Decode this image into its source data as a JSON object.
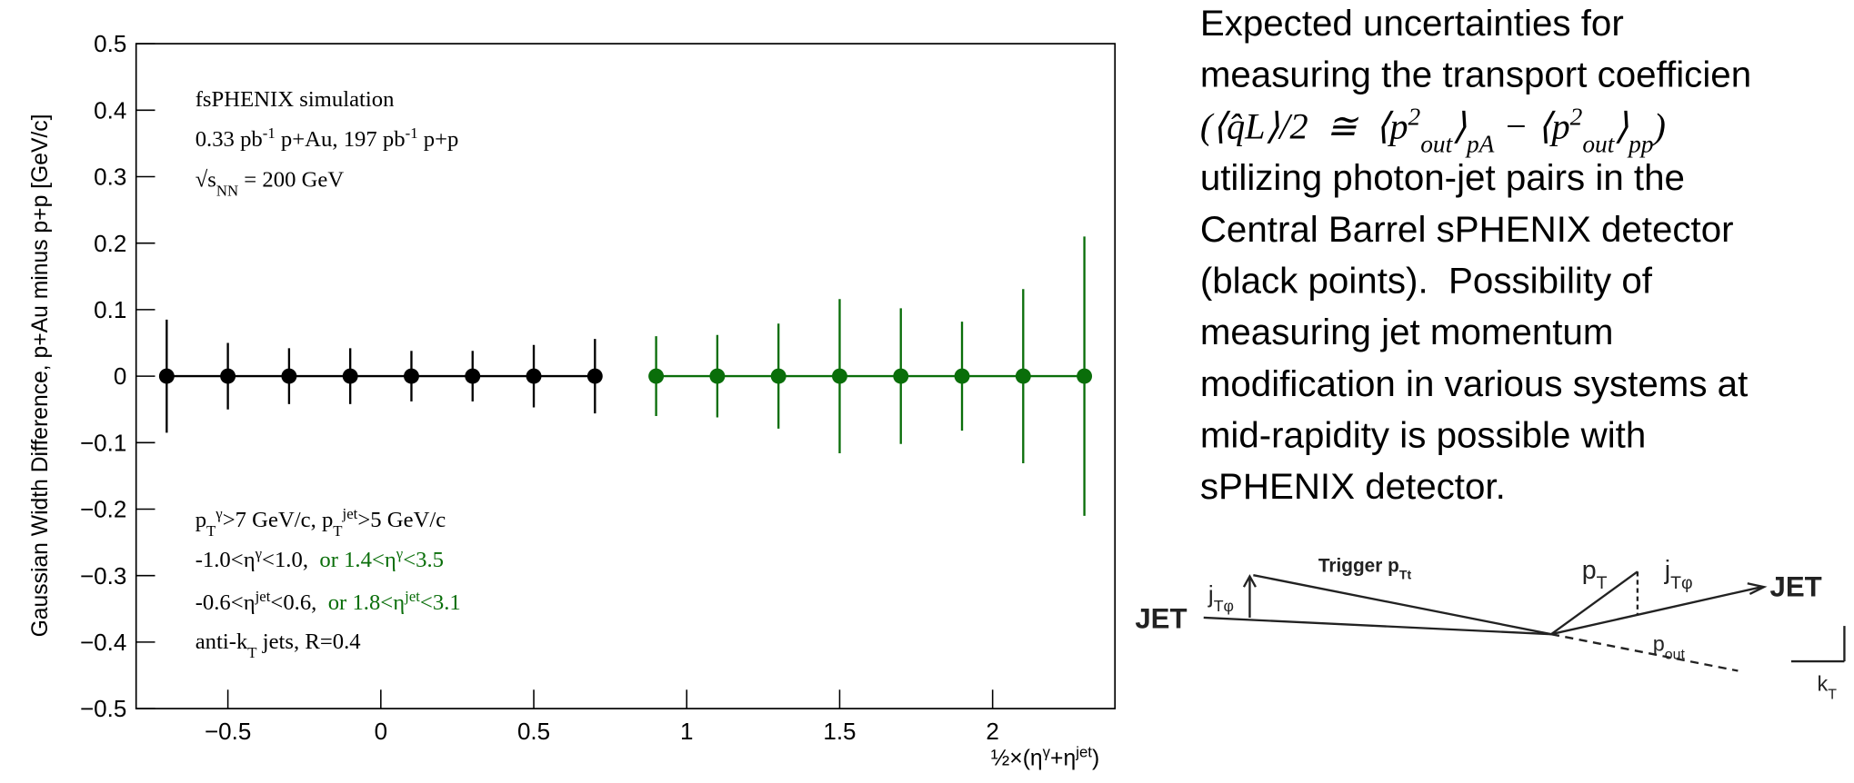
{
  "chart_data": {
    "type": "errorbar",
    "y_label": "Gaussian Width Difference, p+Au minus p+p [GeV/c]",
    "x_label": [
      {
        "text": "½×(η"
      },
      {
        "text": "γ",
        "shift": "super"
      },
      {
        "text": "+η"
      },
      {
        "text": "jet",
        "shift": "super"
      },
      {
        "text": ")"
      }
    ],
    "xlim": [
      -0.8,
      2.4
    ],
    "ylim": [
      -0.5,
      0.5
    ],
    "xticks": [
      {
        "value": -0.5,
        "label": "−0.5"
      },
      0,
      0.5,
      1,
      1.5,
      2
    ],
    "yticks": [
      {
        "value": -0.5,
        "label": "−0.5"
      },
      {
        "value": -0.4,
        "label": "−0.4"
      },
      {
        "value": -0.3,
        "label": "−0.3"
      },
      {
        "value": -0.2,
        "label": "−0.2"
      },
      {
        "value": -0.1,
        "label": "−0.1"
      },
      0,
      0.1,
      0.2,
      0.3,
      0.4,
      0.5
    ],
    "series": [
      {
        "color": "#000000",
        "x": [
          -0.7,
          -0.5,
          -0.3,
          -0.1,
          0.1,
          0.3,
          0.5,
          0.7
        ],
        "values": [
          0,
          0,
          0,
          0,
          0,
          0,
          0,
          0
        ],
        "errors": [
          0.085,
          0.05,
          0.042,
          0.042,
          0.038,
          0.038,
          0.047,
          0.056
        ]
      },
      {
        "color": "#0a6e0a",
        "x": [
          0.9,
          1.1,
          1.3,
          1.5,
          1.7,
          1.9,
          2.1,
          2.3
        ],
        "values": [
          0,
          0,
          0,
          0,
          0,
          0,
          0,
          0
        ],
        "errors": [
          0.06,
          0.062,
          0.079,
          0.116,
          0.102,
          0.082,
          0.131,
          0.21
        ]
      }
    ],
    "annotations": [
      [
        {
          "text": "fsPHENIX simulation"
        }
      ],
      [
        {
          "text": "0.33 pb"
        },
        {
          "text": "-1",
          "shift": "super"
        },
        {
          "text": " p+Au, 197 pb"
        },
        {
          "text": "-1",
          "shift": "super"
        },
        {
          "text": " p+p"
        }
      ],
      [
        {
          "text": "√s"
        },
        {
          "text": "NN",
          "shift": "sub"
        },
        {
          "text": " = 200 GeV"
        }
      ],
      [
        {
          "text": "p"
        },
        {
          "text": "T",
          "shift": "sub"
        },
        {
          "text": "γ",
          "shift": "super"
        },
        {
          "text": ">7 GeV/c, p"
        },
        {
          "text": "T",
          "shift": "sub"
        },
        {
          "text": "jet",
          "shift": "super"
        },
        {
          "text": ">5 GeV/c"
        }
      ],
      [
        {
          "text": "-1.0<η"
        },
        {
          "text": "γ",
          "shift": "super"
        },
        {
          "text": "<1.0,  "
        },
        {
          "text": "or 1.4<η",
          "color": "#0a6e0a"
        },
        {
          "text": "γ",
          "shift": "super",
          "color": "#0a6e0a"
        },
        {
          "text": "<3.5",
          "color": "#0a6e0a"
        }
      ],
      [
        {
          "text": "-0.6<η"
        },
        {
          "text": "jet",
          "shift": "super"
        },
        {
          "text": "<0.6,  "
        },
        {
          "text": "or 1.8<η",
          "color": "#0a6e0a"
        },
        {
          "text": "jet",
          "shift": "super",
          "color": "#0a6e0a"
        },
        {
          "text": "<3.1",
          "color": "#0a6e0a"
        }
      ],
      [
        {
          "text": "anti-k"
        },
        {
          "text": "T",
          "shift": "sub"
        },
        {
          "text": " jets, R=0.4"
        }
      ]
    ]
  },
  "text_panel": {
    "lines": [
      [
        {
          "text": "Expected uncertainties for"
        }
      ],
      [
        {
          "text": "measuring the transport coefficien"
        }
      ],
      [
        {
          "text": "(⟨q̂L⟩/2  ≅  ⟨p"
        },
        {
          "text": "2",
          "shift": "super"
        },
        {
          "text": "out",
          "shift": "sub"
        },
        {
          "text": "⟩"
        },
        {
          "text": "pA",
          "shift": "sub"
        },
        {
          "text": " − ⟨p"
        },
        {
          "text": "2",
          "shift": "super"
        },
        {
          "text": "out",
          "shift": "sub"
        },
        {
          "text": "⟩"
        },
        {
          "text": "pp",
          "shift": "sub"
        },
        {
          "text": ")"
        }
      ],
      [
        {
          "text": "utilizing photon-jet pairs in the"
        }
      ],
      [
        {
          "text": "Central Barrel sPHENIX detector"
        }
      ],
      [
        {
          "text": "(black points).  Possibility of"
        }
      ],
      [
        {
          "text": "measuring jet momentum"
        }
      ],
      [
        {
          "text": "modification in various systems at"
        }
      ],
      [
        {
          "text": "mid-rapidity is possible with"
        }
      ],
      [
        {
          "text": "sPHENIX detector."
        }
      ]
    ]
  },
  "diagram": {
    "labels": [
      [
        {
          "text": "JET"
        }
      ],
      [
        {
          "text": "j"
        },
        {
          "text": "Tφ",
          "shift": "sub"
        }
      ],
      [
        {
          "text": "Trigger p"
        },
        {
          "text": "Tt",
          "shift": "sub"
        }
      ],
      [
        {
          "text": "p"
        },
        {
          "text": "T",
          "shift": "sub"
        }
      ],
      [
        {
          "text": "j"
        },
        {
          "text": "Tφ",
          "shift": "sub"
        }
      ],
      [
        {
          "text": "JET"
        }
      ],
      [
        {
          "text": "p"
        },
        {
          "text": "out",
          "shift": "sub"
        }
      ],
      [
        {
          "text": "k"
        },
        {
          "text": "T",
          "shift": "sub"
        }
      ]
    ]
  }
}
